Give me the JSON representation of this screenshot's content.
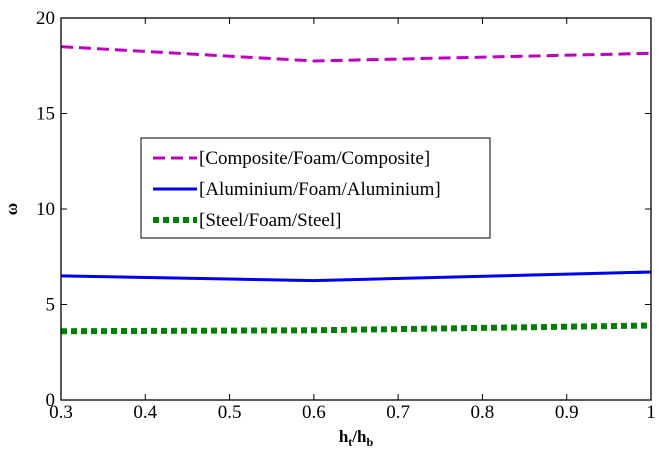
{
  "chart_data": {
    "type": "line",
    "title": "",
    "xlabel": {
      "base": "h",
      "sub1": "t",
      "slash": "/h",
      "sub2": "b"
    },
    "ylabel": "ω",
    "xlim": [
      0.3,
      1.0
    ],
    "ylim": [
      0,
      20
    ],
    "x_ticks": [
      0.3,
      0.4,
      0.5,
      0.6,
      0.7,
      0.8,
      0.9,
      1.0
    ],
    "x_tick_labels": [
      "0.3",
      "0.4",
      "0.5",
      "0.6",
      "0.7",
      "0.8",
      "0.9",
      "1"
    ],
    "y_ticks": [
      0,
      5,
      10,
      15,
      20
    ],
    "y_tick_labels": [
      "0",
      "5",
      "10",
      "15",
      "20"
    ],
    "grid": false,
    "legend_position": "center-left",
    "series": [
      {
        "name": "[Composite/Foam/Composite]",
        "color": "#c000c0",
        "style": "dashed",
        "x": [
          0.3,
          0.6,
          1.0
        ],
        "y": [
          18.5,
          17.75,
          18.15
        ]
      },
      {
        "name": "[Aluminium/Foam/Aluminium]",
        "color": "#0000ee",
        "style": "solid",
        "x": [
          0.3,
          0.6,
          1.0
        ],
        "y": [
          6.5,
          6.25,
          6.7
        ]
      },
      {
        "name": "[Steel/Foam/Steel]",
        "color": "#008000",
        "style": "dotted",
        "x": [
          0.3,
          0.6,
          1.0
        ],
        "y": [
          3.6,
          3.65,
          3.9
        ]
      }
    ]
  }
}
